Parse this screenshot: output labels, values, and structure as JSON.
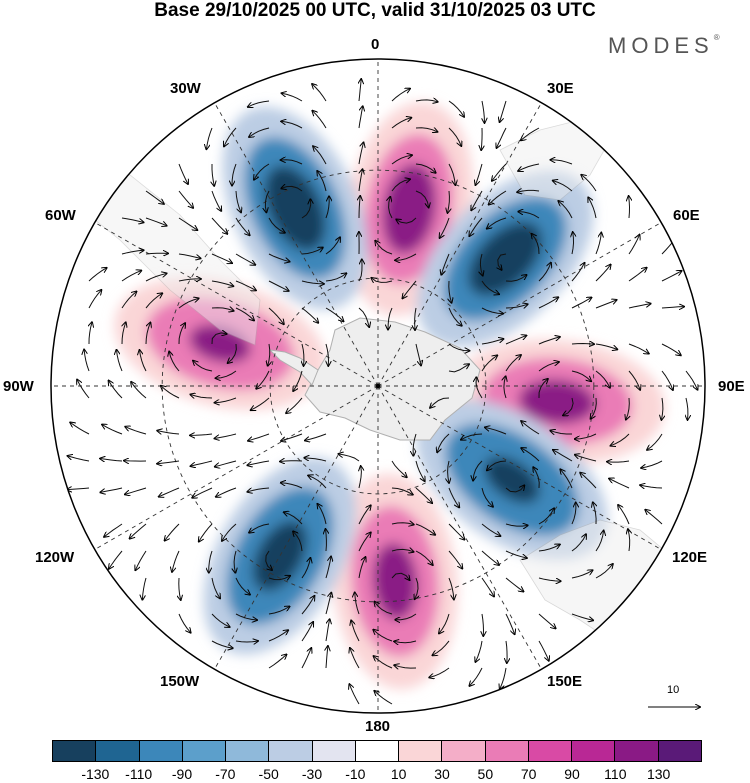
{
  "title": "Base 29/10/2025 00 UTC, valid 31/10/2025 03 UTC",
  "brand": "MODES",
  "brand_mark": "®",
  "longitude_labels": {
    "lon_0": "0",
    "lon_30e": "30E",
    "lon_60e": "60E",
    "lon_90e": "90E",
    "lon_120e": "120E",
    "lon_150e": "150E",
    "lon_180": "180",
    "lon_150w": "150W",
    "lon_120w": "120W",
    "lon_90w": "90W",
    "lon_60w": "60W",
    "lon_30w": "30W"
  },
  "reference_vector": {
    "label": "10"
  },
  "colorbar": {
    "ticks": [
      "-130",
      "-110",
      "-90",
      "-70",
      "-50",
      "-30",
      "-10",
      "10",
      "30",
      "50",
      "70",
      "90",
      "110",
      "130"
    ],
    "colors": [
      "#17405e",
      "#1f6592",
      "#3c87ba",
      "#5c9fcb",
      "#8fb9da",
      "#bccde4",
      "#e3e4f0",
      "#ffffff",
      "#fad6d7",
      "#f4aec8",
      "#ea7cb6",
      "#d94aa5",
      "#b92895",
      "#8a1a85",
      "#5a1a78"
    ]
  },
  "colors": {
    "land": "#eeeeee",
    "pos_light": "#fad6d7",
    "pos_mid": "#ea7cb6",
    "pos_dark": "#8a1a85",
    "neg_light": "#bccde4",
    "neg_mid": "#3c87ba",
    "neg_dark": "#17405e"
  },
  "map_data": {
    "projection": "south-polar-stereographic",
    "anomaly_centers": [
      {
        "lon": 10,
        "lat_ring": 0.55,
        "sign": "positive",
        "peak": 130
      },
      {
        "lon": 45,
        "lat_ring": 0.55,
        "sign": "negative",
        "peak": -130
      },
      {
        "lon": 95,
        "lat_ring": 0.55,
        "sign": "positive",
        "peak": 110
      },
      {
        "lon": 125,
        "lat_ring": 0.5,
        "sign": "negative",
        "peak": -90
      },
      {
        "lon": 175,
        "lat_ring": 0.6,
        "sign": "positive",
        "peak": 110
      },
      {
        "lon": -150,
        "lat_ring": 0.6,
        "sign": "negative",
        "peak": -110
      },
      {
        "lon": -75,
        "lat_ring": 0.5,
        "sign": "positive",
        "peak": 90
      },
      {
        "lon": -25,
        "lat_ring": 0.6,
        "sign": "negative",
        "peak": -130
      }
    ]
  }
}
